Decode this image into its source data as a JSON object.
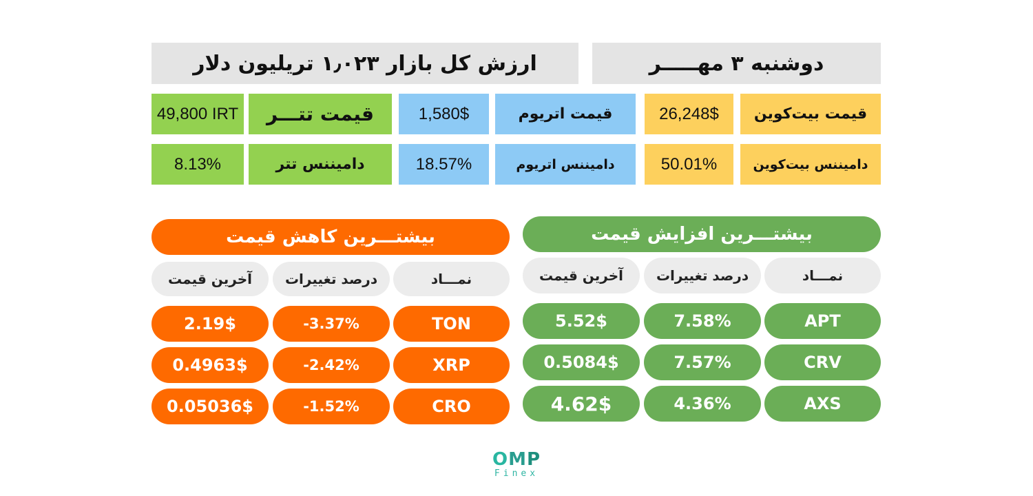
{
  "header": {
    "market_cap": "ارزش کل بازار ۱٫۰۲۳ تریلیون دلار",
    "date": "دوشنبه ۳ مهـــــر"
  },
  "prices": {
    "tether_price_value": "49,800 IRT",
    "tether_price_label": "قیمت تتـــر",
    "eth_price_value": "1,580$",
    "eth_price_label": "قیمت اتریوم",
    "btc_price_value": "26,248$",
    "btc_price_label": "قیمت بیت‌کوین",
    "tether_dom_value": "8.13%",
    "tether_dom_label": "دامیننس تتر",
    "eth_dom_value": "18.57%",
    "eth_dom_label": "دامیننس اتریوم",
    "btc_dom_value": "50.01%",
    "btc_dom_label": "دامیننس بیت‌کوین"
  },
  "losers": {
    "title": "بیشتـــرین کاهش قیمت",
    "col_last_price": "آخرین قیمت",
    "col_change": "درصد تغییرات",
    "col_symbol": "نمـــاد",
    "rows": [
      {
        "symbol": "TON",
        "change": "-3.37%",
        "price": "2.19$"
      },
      {
        "symbol": "XRP",
        "change": "-2.42%",
        "price": "0.4963$"
      },
      {
        "symbol": "CRO",
        "change": "-1.52%",
        "price": "0.05036$"
      }
    ]
  },
  "gainers": {
    "title": "بیشتـــرین افزایش قیمت",
    "col_last_price": "آخرین قیمت",
    "col_change": "درصد تغییرات",
    "col_symbol": "نمـــاد",
    "rows": [
      {
        "symbol": "APT",
        "change": "7.58%",
        "price": "5.52$"
      },
      {
        "symbol": "CRV",
        "change": "7.57%",
        "price": "0.5084$"
      },
      {
        "symbol": "AXS",
        "change": "4.36%",
        "price": "4.62$"
      }
    ]
  },
  "logo": {
    "o": "O",
    "m": "M",
    "p": "P",
    "sub": "Finex"
  },
  "colors": {
    "orange": "#fe6a00",
    "green_pill": "#6bae57",
    "yellow": "#fdd05d",
    "blue": "#8dcaf5",
    "lime": "#93d150",
    "grey": "#e4e4e4",
    "teal": "#2fb5a3"
  }
}
